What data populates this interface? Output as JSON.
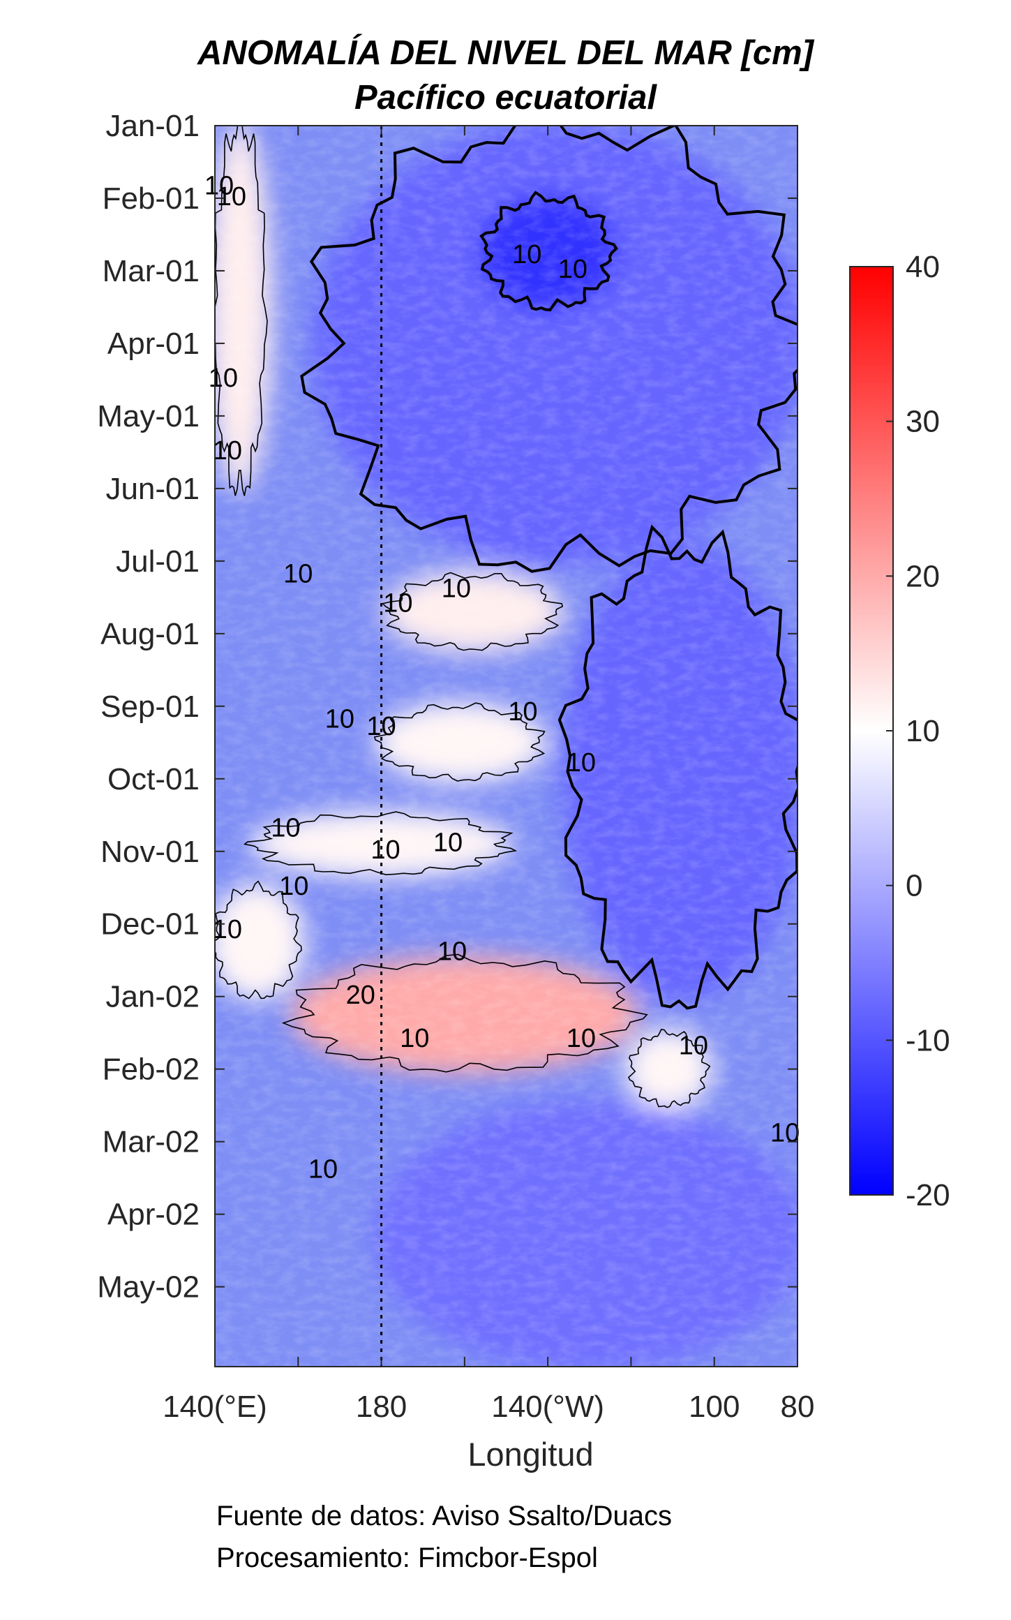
{
  "chart_data": {
    "type": "heatmap",
    "title": "ANOMALÍA DEL NIVEL DEL MAR [cm]",
    "subtitle": "Pacífico ecuatorial",
    "xlabel": "Longitud",
    "ylabel": "",
    "x_ticks": [
      {
        "value": 140,
        "label": "140(°E)"
      },
      {
        "value": 180,
        "label": "180"
      },
      {
        "value": 220,
        "label": "140(°W)"
      },
      {
        "value": 260,
        "label": "100"
      },
      {
        "value": 280,
        "label": "80"
      }
    ],
    "x_minor_ticks": [
      160,
      200,
      240
    ],
    "xlim": [
      140,
      280
    ],
    "y_ticks": [
      "Jan-01",
      "Feb-01",
      "Mar-01",
      "Apr-01",
      "May-01",
      "Jun-01",
      "Jul-01",
      "Aug-01",
      "Sep-01",
      "Oct-01",
      "Nov-01",
      "Dec-01",
      "Jan-02",
      "Feb-02",
      "Mar-02",
      "Apr-02",
      "May-02"
    ],
    "y_direction": "time increasing downward",
    "ylim_months": [
      0,
      17.1
    ],
    "reference_line": {
      "x": 180,
      "style": "dotted"
    },
    "colorbar": {
      "range": [
        -20,
        40
      ],
      "ticks": [
        40,
        30,
        20,
        10,
        0,
        -10,
        -20
      ],
      "colormap": "blue-white-red",
      "colors": {
        "low": "#0000ff",
        "mid": "#ffffff",
        "high": "#ff0000"
      }
    },
    "contour_levels": [
      0,
      10,
      20
    ],
    "contour_labels": [
      {
        "text": "10",
        "x": 141,
        "month": 0.85
      },
      {
        "text": "10",
        "x": 144,
        "month": 1.0
      },
      {
        "text": "10",
        "x": 215,
        "month": 1.8
      },
      {
        "text": "10",
        "x": 226,
        "month": 2.0
      },
      {
        "text": "10",
        "x": 142,
        "month": 3.5
      },
      {
        "text": "10",
        "x": 143,
        "month": 4.5
      },
      {
        "text": "10",
        "x": 160,
        "month": 6.2
      },
      {
        "text": "10",
        "x": 184,
        "month": 6.6
      },
      {
        "text": "10",
        "x": 198,
        "month": 6.4
      },
      {
        "text": "10",
        "x": 170,
        "month": 8.2
      },
      {
        "text": "10",
        "x": 180,
        "month": 8.3
      },
      {
        "text": "10",
        "x": 214,
        "month": 8.1
      },
      {
        "text": "10",
        "x": 228,
        "month": 8.8
      },
      {
        "text": "10",
        "x": 157,
        "month": 9.7
      },
      {
        "text": "10",
        "x": 181,
        "month": 10.0
      },
      {
        "text": "10",
        "x": 196,
        "month": 9.9
      },
      {
        "text": "10",
        "x": 159,
        "month": 10.5
      },
      {
        "text": "10",
        "x": 143,
        "month": 11.1
      },
      {
        "text": "20",
        "x": 175,
        "month": 12.0
      },
      {
        "text": "10",
        "x": 197,
        "month": 11.4
      },
      {
        "text": "10",
        "x": 188,
        "month": 12.6
      },
      {
        "text": "10",
        "x": 228,
        "month": 12.6
      },
      {
        "text": "10",
        "x": 255,
        "month": 12.7
      },
      {
        "text": "10",
        "x": 277,
        "month": 13.9
      },
      {
        "text": "10",
        "x": 166,
        "month": 14.4
      }
    ],
    "anomaly_field_features": [
      {
        "description": "positive anomaly near western edge",
        "lon": [
          140,
          152
        ],
        "month": [
          0,
          5
        ],
        "value_cm": 12
      },
      {
        "description": "negative anomaly band",
        "lon": [
          165,
          280
        ],
        "month": [
          0,
          6
        ],
        "value_cm": -8
      },
      {
        "description": "strongest negative",
        "lon": [
          205,
          235
        ],
        "month": [
          1,
          2.5
        ],
        "value_cm": -14
      },
      {
        "description": "positive band",
        "lon": [
          182,
          222
        ],
        "month": [
          6.2,
          7.2
        ],
        "value_cm": 12
      },
      {
        "description": "positive band",
        "lon": [
          180,
          218
        ],
        "month": [
          8,
          9
        ],
        "value_cm": 11
      },
      {
        "description": "positive band",
        "lon": [
          150,
          210
        ],
        "month": [
          9.5,
          10.3
        ],
        "value_cm": 11
      },
      {
        "description": "positive band",
        "lon": [
          140,
          160
        ],
        "month": [
          10.5,
          12
        ],
        "value_cm": 11
      },
      {
        "description": "maximum positive anomaly",
        "lon": [
          160,
          240
        ],
        "month": [
          11.5,
          13
        ],
        "value_cm": 20
      },
      {
        "description": "positive tail",
        "lon": [
          240,
          258
        ],
        "month": [
          12.5,
          13.5
        ],
        "value_cm": 11
      },
      {
        "description": "negative anomaly band",
        "lon": [
          225,
          280
        ],
        "month": [
          5.8,
          12
        ],
        "value_cm": -8
      },
      {
        "description": "negative anomaly band",
        "lon": [
          180,
          280
        ],
        "month": [
          13.5,
          17.1
        ],
        "value_cm": -7
      }
    ]
  },
  "footer": {
    "line1": "Fuente de datos: Aviso Ssalto/Duacs",
    "line2": "Procesamiento: Fimcbor-Espol"
  }
}
